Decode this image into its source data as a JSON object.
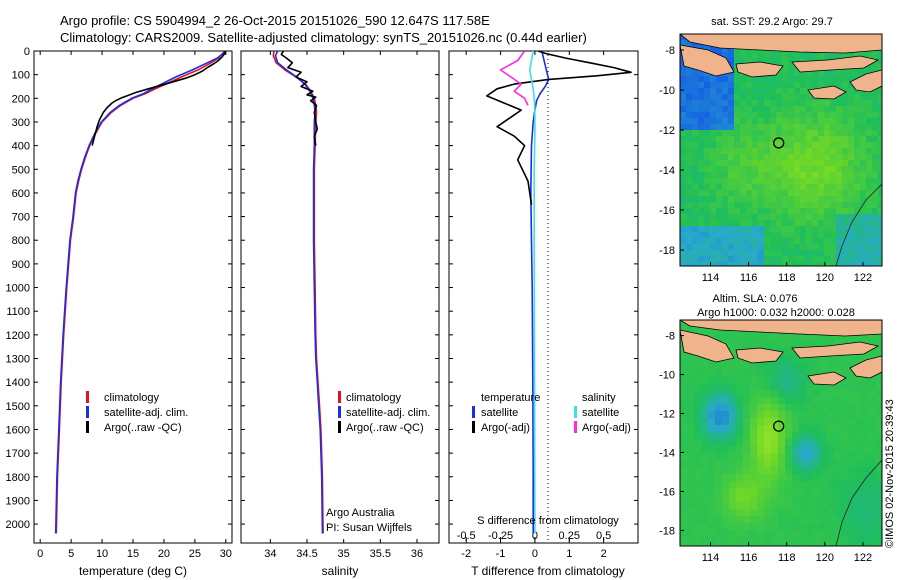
{
  "title_line1": "Argo profile: CS 5904994_2 26-Oct-2015 20151026_590 12.647S 117.58E",
  "title_line2": "Climatology: CARS2009. Satellite-adjusted climatology: synTS_20151026.nc (0.44d earlier)",
  "chart_data": [
    {
      "id": "temperature",
      "type": "line",
      "xlabel": "temperature (deg C)",
      "ylabel": "",
      "xlim": [
        -1,
        31
      ],
      "ylim": [
        2080,
        0
      ],
      "x_ticks": [
        "0",
        "5",
        "10",
        "15",
        "20",
        "25",
        "30"
      ],
      "y_ticks": [
        "0",
        "100",
        "200",
        "300",
        "400",
        "500",
        "600",
        "700",
        "800",
        "900",
        "1000",
        "1100",
        "1200",
        "1300",
        "1400",
        "1500",
        "1600",
        "1700",
        "1800",
        "1900",
        "2000"
      ],
      "legend": [
        {
          "name": "climatology",
          "color": "#e8101a"
        },
        {
          "name": "satellite-adj. clim.",
          "color": "#1a2ee8"
        },
        {
          "name": "Argo(..raw -QC)",
          "color": "#000000"
        }
      ],
      "series": [
        {
          "name": "climatology",
          "color": "#e8101a",
          "x": [
            29.8,
            29.5,
            28.8,
            27.6,
            25.5,
            22.8,
            20.3,
            18.6,
            17.0,
            15.0,
            13.0,
            11.5,
            10.0,
            8.9,
            8.0,
            7.3,
            6.7,
            6.2,
            5.8,
            5.4,
            4.9,
            4.3,
            3.8,
            3.4,
            3.1,
            2.8,
            2.6
          ],
          "y": [
            0,
            10,
            30,
            50,
            80,
            110,
            140,
            160,
            180,
            200,
            230,
            260,
            300,
            350,
            400,
            450,
            500,
            550,
            600,
            700,
            800,
            1000,
            1200,
            1400,
            1600,
            1800,
            2040
          ]
        },
        {
          "name": "satellite-adj. clim.",
          "color": "#1a2ee8",
          "x": [
            30.0,
            29.6,
            28.6,
            27.0,
            24.6,
            21.9,
            19.6,
            18.1,
            16.7,
            14.8,
            12.8,
            11.3,
            9.9,
            8.8,
            7.9,
            7.2,
            6.6,
            6.1,
            5.7,
            5.3,
            4.8,
            4.2,
            3.7,
            3.3,
            3.0,
            2.7,
            2.5
          ],
          "y": [
            0,
            10,
            30,
            50,
            80,
            110,
            140,
            160,
            180,
            200,
            230,
            260,
            300,
            350,
            400,
            450,
            500,
            550,
            600,
            700,
            800,
            1000,
            1200,
            1400,
            1600,
            1800,
            2040
          ]
        },
        {
          "name": "Argo(..raw -QC)",
          "color": "#000000",
          "x": [
            29.9,
            29.9,
            29.7,
            29.4,
            28.8,
            28.0,
            27.0,
            26.2,
            25.0,
            23.5,
            21.5,
            19.5,
            17.5,
            15.5,
            14.0,
            13.0,
            12.2,
            11.6,
            10.8,
            10.2,
            9.6,
            9.2,
            8.8,
            8.4
          ],
          "y": [
            0,
            5,
            15,
            25,
            40,
            55,
            70,
            85,
            100,
            115,
            130,
            145,
            160,
            175,
            190,
            200,
            210,
            220,
            240,
            260,
            290,
            320,
            360,
            400
          ]
        }
      ]
    },
    {
      "id": "salinity",
      "type": "line",
      "xlabel": "salinity",
      "xlim": [
        33.6,
        36.3
      ],
      "ylim": [
        2080,
        0
      ],
      "x_ticks": [
        "34",
        "34.5",
        "35",
        "35.5",
        "36"
      ],
      "legend": [
        {
          "name": "climatology",
          "color": "#e8101a"
        },
        {
          "name": "satellite-adj. clim.",
          "color": "#1a2ee8"
        },
        {
          "name": "Argo(..raw -QC)",
          "color": "#000000"
        }
      ],
      "annotation": [
        "Argo Australia",
        "PI: Susan Wijffels"
      ],
      "series": [
        {
          "name": "climatology",
          "color": "#e8101a",
          "x": [
            34.05,
            34.04,
            34.08,
            34.2,
            34.35,
            34.48,
            34.55,
            34.6,
            34.62,
            34.63,
            34.62,
            34.61,
            34.6,
            34.6,
            34.6,
            34.61,
            34.62,
            34.63,
            34.65,
            34.67,
            34.69,
            34.71,
            34.72
          ],
          "y": [
            0,
            20,
            50,
            80,
            110,
            140,
            170,
            200,
            230,
            260,
            300,
            400,
            500,
            600,
            800,
            1000,
            1200,
            1300,
            1400,
            1500,
            1600,
            1800,
            2040
          ]
        },
        {
          "name": "satellite-adj. clim.",
          "color": "#1a2ee8",
          "x": [
            34.1,
            34.07,
            34.1,
            34.22,
            34.36,
            34.47,
            34.54,
            34.58,
            34.6,
            34.61,
            34.6,
            34.6,
            34.59,
            34.59,
            34.59,
            34.6,
            34.61,
            34.62,
            34.64,
            34.66,
            34.68,
            34.7,
            34.71
          ],
          "y": [
            0,
            20,
            50,
            80,
            110,
            140,
            170,
            200,
            230,
            260,
            300,
            400,
            500,
            600,
            800,
            1000,
            1200,
            1300,
            1400,
            1500,
            1600,
            1800,
            2040
          ]
        },
        {
          "name": "Argo(..raw -QC)",
          "color": "#000000",
          "x": [
            34.18,
            34.15,
            34.22,
            34.3,
            34.24,
            34.42,
            34.35,
            34.5,
            34.42,
            34.58,
            34.5,
            34.62,
            34.55,
            34.63,
            34.6,
            34.62,
            34.64,
            34.6,
            34.62
          ],
          "y": [
            0,
            15,
            30,
            50,
            70,
            90,
            110,
            130,
            150,
            170,
            185,
            195,
            210,
            230,
            260,
            300,
            330,
            360,
            400
          ]
        }
      ]
    },
    {
      "id": "differences",
      "type": "line",
      "xlabel": "T difference from climatology",
      "xlabel_top": "S difference from climatology",
      "xlim": [
        -2.5,
        3.0
      ],
      "ylim": [
        2080,
        0
      ],
      "x_ticks": [
        "-2",
        "-1",
        "0",
        "1",
        "2"
      ],
      "x_ticks_top": [
        "-0.5",
        "-0.25",
        "0",
        "0.25",
        "0.5"
      ],
      "legend_groups": [
        {
          "title": "temperature",
          "items": [
            {
              "name": "satellite",
              "color": "#1a2ee8"
            },
            {
              "name": "Argo(-adj)",
              "color": "#000000"
            }
          ]
        },
        {
          "title": "salinity",
          "items": [
            {
              "name": "satellite",
              "color": "#3fe0e8"
            },
            {
              "name": "Argo(-adj)",
              "color": "#ff2bd6"
            }
          ]
        }
      ],
      "series": [
        {
          "name": "temperature satellite",
          "color": "#1a2ee8",
          "x": [
            0.2,
            0.25,
            0.3,
            0.35,
            0.4,
            0.3,
            0.15,
            0.05,
            0.0,
            -0.05,
            -0.1,
            -0.12,
            -0.1,
            -0.08,
            -0.06,
            -0.05,
            -0.05
          ],
          "y": [
            0,
            30,
            60,
            90,
            120,
            150,
            180,
            210,
            250,
            300,
            400,
            600,
            800,
            1000,
            1400,
            1800,
            2040
          ]
        },
        {
          "name": "temperature Argo(-adj)",
          "color": "#000000",
          "x": [
            0.1,
            0.3,
            0.9,
            1.6,
            2.3,
            2.8,
            1.8,
            0.4,
            -0.6,
            -1.1,
            -1.4,
            -0.9,
            -0.4,
            -0.7,
            -1.1,
            -0.6,
            -0.3,
            -0.5,
            -0.2,
            -0.1
          ],
          "y": [
            0,
            10,
            30,
            50,
            70,
            90,
            105,
            120,
            140,
            160,
            190,
            220,
            250,
            280,
            320,
            360,
            400,
            460,
            550,
            650
          ]
        },
        {
          "name": "salinity satellite",
          "color": "#3fe0e8",
          "x": [
            -0.05,
            -0.1,
            -0.15,
            -0.1,
            -0.05,
            -0.02,
            0.0,
            0.0,
            -0.02,
            -0.02,
            -0.01,
            0.0
          ],
          "y": [
            0,
            40,
            80,
            120,
            160,
            200,
            250,
            350,
            500,
            800,
            1400,
            2040
          ]
        },
        {
          "name": "salinity Argo(-adj)",
          "color": "#ff2bd6",
          "x": [
            -0.3,
            -0.5,
            -1.0,
            -0.7,
            -0.4,
            -0.6,
            -0.3,
            -0.2
          ],
          "y": [
            0,
            40,
            80,
            110,
            140,
            170,
            200,
            230
          ]
        }
      ]
    },
    {
      "id": "map_sst",
      "type": "heatmap",
      "title": "sat. SST: 29.2  Argo: 29.7",
      "x_ticks": [
        "114",
        "116",
        "118",
        "120",
        "122"
      ],
      "y_ticks": [
        "-8",
        "-10",
        "-12",
        "-14",
        "-16",
        "-18"
      ],
      "xlim": [
        112.4,
        123.0
      ],
      "ylim": [
        -18.8,
        -7.2
      ],
      "marker": {
        "lon": 117.58,
        "lat": -12.647
      }
    },
    {
      "id": "map_sla",
      "type": "heatmap",
      "title": "Altim. SLA: 0.076",
      "subtitle": "Argo h1000: 0.032 h2000: 0.028",
      "x_ticks": [
        "114",
        "116",
        "118",
        "120",
        "122"
      ],
      "y_ticks": [
        "-8",
        "-10",
        "-12",
        "-14",
        "-16",
        "-18"
      ],
      "xlim": [
        112.4,
        123.0
      ],
      "ylim": [
        -18.8,
        -7.2
      ],
      "marker": {
        "lon": 117.58,
        "lat": -12.647
      }
    }
  ],
  "credit": "©IMOS 02-Nov-2015 20:39:43"
}
